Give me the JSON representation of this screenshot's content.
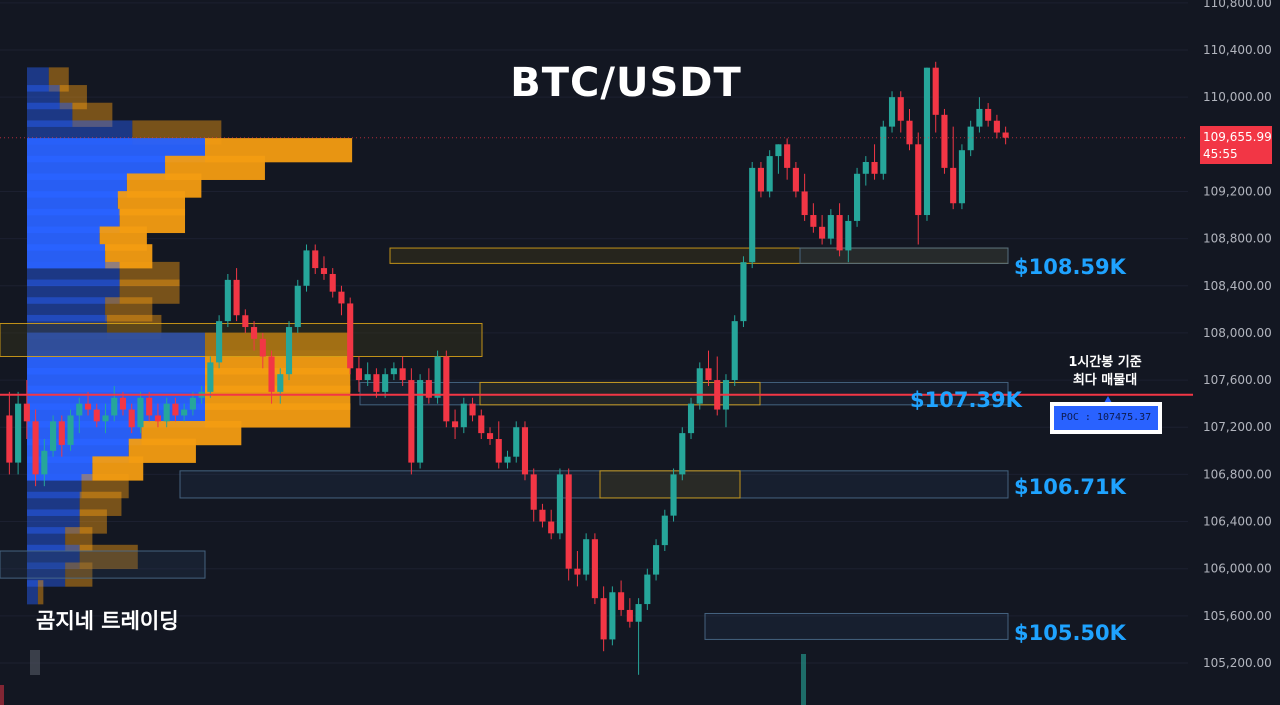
{
  "title": "BTC/USDT",
  "watermark": "곰지네 트레이딩",
  "poc_note_line1": "1시간봉 기준",
  "poc_note_line2": "최다 매물대",
  "poc_label": "POC : 107475.37",
  "current_price": "109,655.99",
  "countdown": "45:55",
  "level_labels": [
    "$108.59K",
    "$107.39K",
    "$106.71K",
    "$105.50K"
  ],
  "colors": {
    "background": "#131722",
    "up": "#26a69a",
    "down": "#f23645",
    "volume_buy": "#2962ff",
    "volume_sell": "#f39c12",
    "poc_line": "#f23645",
    "level_label": "#1fa3ff"
  },
  "chart_data": {
    "type": "candlestick",
    "symbol": "BTC/USDT",
    "y_ticks": [
      "110,800.00",
      "110,400.00",
      "110,000.00",
      "109,200.00",
      "108,800.00",
      "108,400.00",
      "108,000.00",
      "107,600.00",
      "107,200.00",
      "106,800.00",
      "106,400.00",
      "106,000.00",
      "105,600.00",
      "105,200.00"
    ],
    "y_tick_values": [
      110800,
      110400,
      110000,
      109200,
      108800,
      108400,
      108000,
      107600,
      107200,
      106800,
      106400,
      106000,
      105600,
      105200
    ],
    "ylim": [
      105000,
      110830
    ],
    "current_price": 109655.99,
    "poc": 107475.37,
    "key_levels": [
      108590,
      107390,
      106710,
      105500
    ],
    "ohlc": [
      [
        107300,
        107500,
        106800,
        106900
      ],
      [
        106900,
        107500,
        106800,
        107400
      ],
      [
        107400,
        107600,
        107100,
        107250
      ],
      [
        107250,
        107350,
        106700,
        106800
      ],
      [
        106800,
        107100,
        106700,
        107000
      ],
      [
        107000,
        107300,
        106950,
        107250
      ],
      [
        107250,
        107300,
        106950,
        107050
      ],
      [
        107050,
        107350,
        107000,
        107300
      ],
      [
        107300,
        107450,
        107150,
        107400
      ],
      [
        107400,
        107500,
        107300,
        107350
      ],
      [
        107350,
        107400,
        107200,
        107250
      ],
      [
        107250,
        107400,
        107150,
        107300
      ],
      [
        107300,
        107550,
        107250,
        107450
      ],
      [
        107450,
        107500,
        107300,
        107350
      ],
      [
        107350,
        107400,
        107150,
        107200
      ],
      [
        107200,
        107500,
        107150,
        107450
      ],
      [
        107450,
        107500,
        107250,
        107300
      ],
      [
        107300,
        107400,
        107200,
        107250
      ],
      [
        107250,
        107450,
        107200,
        107400
      ],
      [
        107400,
        107450,
        107250,
        107300
      ],
      [
        107300,
        107400,
        107250,
        107350
      ],
      [
        107350,
        107500,
        107300,
        107450
      ],
      [
        107450,
        107550,
        107400,
        107500
      ],
      [
        107500,
        107800,
        107450,
        107750
      ],
      [
        107750,
        108150,
        107700,
        108100
      ],
      [
        108100,
        108500,
        108050,
        108450
      ],
      [
        108450,
        108550,
        108100,
        108150
      ],
      [
        108150,
        108200,
        108000,
        108050
      ],
      [
        108050,
        108100,
        107850,
        107950
      ],
      [
        107950,
        108000,
        107700,
        107800
      ],
      [
        107800,
        107850,
        107400,
        107500
      ],
      [
        107500,
        107700,
        107400,
        107650
      ],
      [
        107650,
        108100,
        107600,
        108050
      ],
      [
        108050,
        108450,
        108000,
        108400
      ],
      [
        108400,
        108750,
        108350,
        108700
      ],
      [
        108700,
        108750,
        108500,
        108550
      ],
      [
        108550,
        108650,
        108450,
        108500
      ],
      [
        108500,
        108550,
        108300,
        108350
      ],
      [
        108350,
        108400,
        108150,
        108250
      ],
      [
        108250,
        108300,
        107650,
        107700
      ],
      [
        107700,
        107800,
        107500,
        107600
      ],
      [
        107600,
        107750,
        107550,
        107650
      ],
      [
        107650,
        107700,
        107450,
        107500
      ],
      [
        107500,
        107700,
        107450,
        107650
      ],
      [
        107650,
        107750,
        107600,
        107700
      ],
      [
        107700,
        107800,
        107550,
        107600
      ],
      [
        107600,
        107700,
        106800,
        106900
      ],
      [
        106900,
        107650,
        106850,
        107600
      ],
      [
        107600,
        107700,
        107400,
        107450
      ],
      [
        107450,
        107850,
        107400,
        107800
      ],
      [
        107800,
        107850,
        107200,
        107250
      ],
      [
        107250,
        107350,
        107100,
        107200
      ],
      [
        107200,
        107450,
        107150,
        107400
      ],
      [
        107400,
        107450,
        107250,
        107300
      ],
      [
        107300,
        107350,
        107100,
        107150
      ],
      [
        107150,
        107200,
        107050,
        107100
      ],
      [
        107100,
        107250,
        106850,
        106900
      ],
      [
        106900,
        107000,
        106850,
        106950
      ],
      [
        106950,
        107250,
        106900,
        107200
      ],
      [
        107200,
        107250,
        106750,
        106800
      ],
      [
        106800,
        106850,
        106400,
        106500
      ],
      [
        106500,
        106550,
        106350,
        106400
      ],
      [
        106400,
        106500,
        106250,
        106300
      ],
      [
        106300,
        106850,
        106250,
        106800
      ],
      [
        106800,
        106850,
        105900,
        106000
      ],
      [
        106000,
        106150,
        105850,
        105950
      ],
      [
        105950,
        106300,
        105900,
        106250
      ],
      [
        106250,
        106300,
        105700,
        105750
      ],
      [
        105750,
        105850,
        105300,
        105400
      ],
      [
        105400,
        105850,
        105350,
        105800
      ],
      [
        105800,
        105900,
        105600,
        105650
      ],
      [
        105650,
        105750,
        105500,
        105550
      ],
      [
        105550,
        105750,
        105100,
        105700
      ],
      [
        105700,
        106000,
        105650,
        105950
      ],
      [
        105950,
        106250,
        105900,
        106200
      ],
      [
        106200,
        106500,
        106150,
        106450
      ],
      [
        106450,
        106850,
        106400,
        106800
      ],
      [
        106800,
        107200,
        106750,
        107150
      ],
      [
        107150,
        107450,
        107100,
        107400
      ],
      [
        107400,
        107750,
        107350,
        107700
      ],
      [
        107700,
        107850,
        107550,
        107600
      ],
      [
        107600,
        107800,
        107300,
        107350
      ],
      [
        107350,
        107650,
        107200,
        107600
      ],
      [
        107600,
        108150,
        107550,
        108100
      ],
      [
        108100,
        108650,
        108050,
        108600
      ],
      [
        108600,
        109450,
        108550,
        109400
      ],
      [
        109400,
        109450,
        109150,
        109200
      ],
      [
        109200,
        109550,
        109150,
        109500
      ],
      [
        109500,
        109600,
        109350,
        109600
      ],
      [
        109600,
        109650,
        109300,
        109400
      ],
      [
        109400,
        109450,
        109150,
        109200
      ],
      [
        109200,
        109350,
        108950,
        109000
      ],
      [
        109000,
        109100,
        108850,
        108900
      ],
      [
        108900,
        109000,
        108750,
        108800
      ],
      [
        108800,
        109050,
        108750,
        109000
      ],
      [
        109000,
        109100,
        108650,
        108700
      ],
      [
        108700,
        109000,
        108600,
        108950
      ],
      [
        108950,
        109400,
        108900,
        109350
      ],
      [
        109350,
        109500,
        109250,
        109450
      ],
      [
        109450,
        109600,
        109300,
        109350
      ],
      [
        109350,
        109800,
        109300,
        109750
      ],
      [
        109750,
        110050,
        109700,
        110000
      ],
      [
        110000,
        110050,
        109700,
        109800
      ],
      [
        109800,
        109900,
        109550,
        109600
      ],
      [
        109600,
        109700,
        108750,
        109000
      ],
      [
        109000,
        110250,
        108950,
        110250
      ],
      [
        110250,
        110300,
        109700,
        109850
      ],
      [
        109850,
        109900,
        109350,
        109400
      ],
      [
        109400,
        109750,
        109050,
        109100
      ],
      [
        109100,
        109600,
        109050,
        109550
      ],
      [
        109550,
        109800,
        109500,
        109750
      ],
      [
        109750,
        110000,
        109700,
        109900
      ],
      [
        109900,
        109950,
        109750,
        109800
      ],
      [
        109800,
        109850,
        109650,
        109700
      ],
      [
        109700,
        109750,
        109600,
        109656
      ]
    ],
    "volume_profile": {
      "price_levels": [
        110150,
        110000,
        109850,
        109700,
        109550,
        109400,
        109250,
        109100,
        108950,
        108800,
        108650,
        108500,
        108350,
        108200,
        108050,
        107900,
        107750,
        107600,
        107450,
        107300,
        107150,
        107000,
        106850,
        106700,
        106550,
        106400,
        106250,
        106100,
        105950,
        105800
      ],
      "buy": [
        12,
        18,
        25,
        58,
        98,
        76,
        55,
        50,
        51,
        40,
        43,
        51,
        51,
        43,
        44,
        98,
        98,
        98,
        98,
        98,
        63,
        56,
        36,
        30,
        29,
        29,
        21,
        29,
        21,
        6
      ],
      "sell": [
        11,
        15,
        22,
        49,
        81,
        55,
        41,
        37,
        36,
        26,
        26,
        33,
        33,
        26,
        30,
        80,
        80,
        80,
        80,
        80,
        55,
        37,
        28,
        26,
        23,
        15,
        15,
        32,
        15,
        3
      ],
      "poc_index": 18
    }
  }
}
